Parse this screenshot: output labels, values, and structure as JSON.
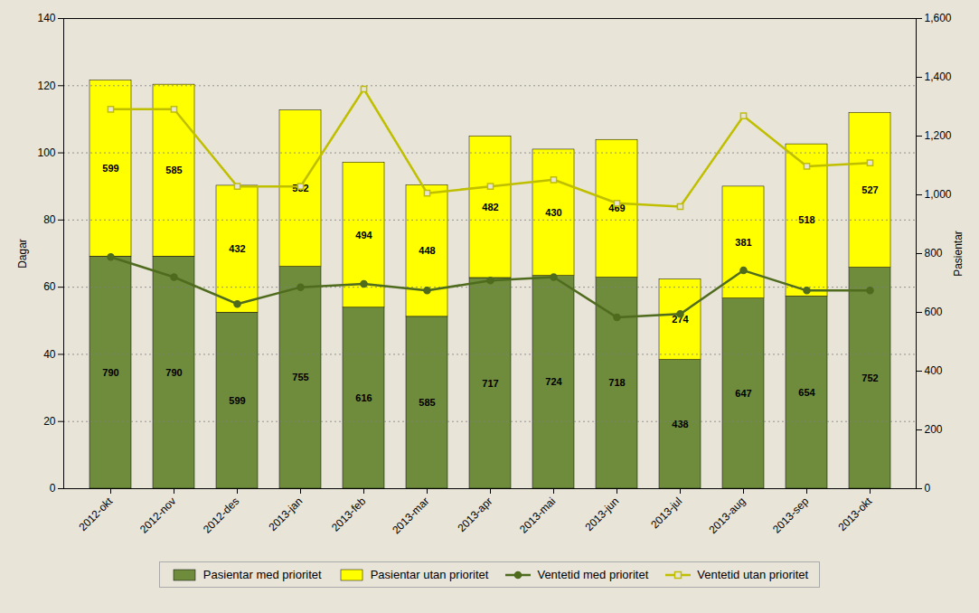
{
  "chart_data": {
    "type": "bar",
    "categories": [
      "2012-okt",
      "2012-nov",
      "2012-des",
      "2013-jan",
      "2013-feb",
      "2013-mar",
      "2013-apr",
      "2013-mai",
      "2013-jun",
      "2013-jul",
      "2013-aug",
      "2013-sep",
      "2013-okt"
    ],
    "series": [
      {
        "name": "Pasientar med prioritet",
        "type": "bar",
        "axis": "y2",
        "color": "#6e8c3b",
        "values": [
          790,
          790,
          599,
          755,
          616,
          585,
          717,
          724,
          718,
          438,
          647,
          654,
          752
        ]
      },
      {
        "name": "Pasientar utan prioritet",
        "type": "bar",
        "axis": "y2",
        "color": "#ffff00",
        "values": [
          599,
          585,
          432,
          532,
          494,
          448,
          482,
          430,
          469,
          274,
          381,
          518,
          527
        ]
      },
      {
        "name": "Ventetid med prioritet",
        "type": "line",
        "color": "#4f6b1e",
        "marker": "circle",
        "values": [
          69,
          63,
          55,
          60,
          61,
          59,
          62,
          63,
          51,
          52,
          65,
          59,
          59
        ]
      },
      {
        "name": "Ventetid utan prioritet",
        "type": "line",
        "color": "#bfbf00",
        "marker": "square",
        "values": [
          113,
          113,
          90,
          90,
          119,
          88,
          90,
          92,
          85,
          84,
          111,
          96,
          97
        ]
      }
    ],
    "stacked": true,
    "data_labels": true,
    "ylabel": "Dagar",
    "y2label": "Pasientar",
    "ylim": [
      0,
      140
    ],
    "yticks": [
      0,
      20,
      40,
      60,
      80,
      100,
      120,
      140
    ],
    "y2lim": [
      0,
      1600
    ],
    "y2ticks": [
      0,
      200,
      400,
      600,
      800,
      1000,
      1200,
      1400,
      1600
    ],
    "grid": true,
    "legend": "bottom"
  }
}
